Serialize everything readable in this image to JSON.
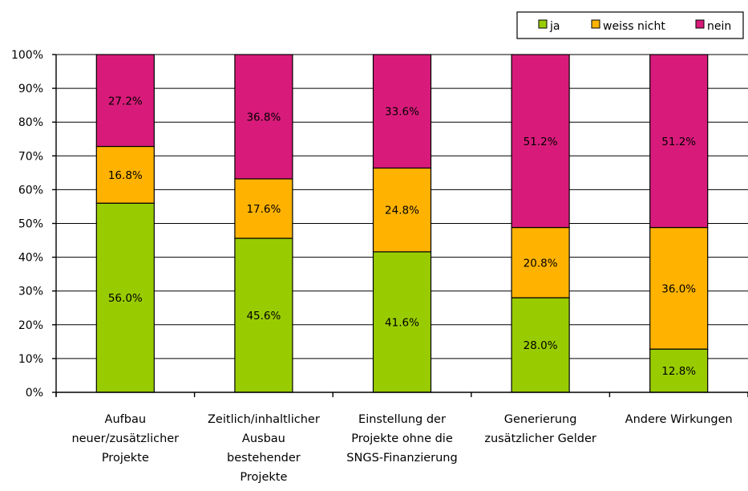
{
  "chart_data": {
    "type": "bar",
    "stacked": true,
    "categories": [
      "Aufbau neuer/zusätzlicher Projekte",
      "Zeitlich/inhaltlicher Ausbau bestehender Projekte",
      "Einstellung der Projekte ohne die SNGS-Finanzierung",
      "Generierung zusätzlicher Gelder",
      "Andere Wirkungen"
    ],
    "category_lines": [
      [
        "Aufbau",
        "neuer/zusätzlicher",
        "Projekte"
      ],
      [
        "Zeitlich/inhaltlicher",
        "Ausbau",
        "bestehender",
        "Projekte"
      ],
      [
        "Einstellung der",
        "Projekte ohne die",
        "SNGS-Finanzierung"
      ],
      [
        "Generierung",
        "zusätzlicher Gelder"
      ],
      [
        "Andere Wirkungen"
      ]
    ],
    "series": [
      {
        "name": "ja",
        "color": "#99cc00",
        "values": [
          56.0,
          45.6,
          41.6,
          28.0,
          12.8
        ],
        "labels": [
          "56.0%",
          "45.6%",
          "41.6%",
          "28.0%",
          "12.8%"
        ]
      },
      {
        "name": "weiss nicht",
        "color": "#ffb300",
        "values": [
          16.8,
          17.6,
          24.8,
          20.8,
          36.0
        ],
        "labels": [
          "16.8%",
          "17.6%",
          "24.8%",
          "20.8%",
          "36.0%"
        ]
      },
      {
        "name": "nein",
        "color": "#d81b7a",
        "values": [
          27.2,
          36.8,
          33.6,
          51.2,
          51.2
        ],
        "labels": [
          "27.2%",
          "36.8%",
          "33.6%",
          "51.2%",
          "51.2%"
        ]
      }
    ],
    "y_ticks": [
      "0%",
      "10%",
      "20%",
      "30%",
      "40%",
      "50%",
      "60%",
      "70%",
      "80%",
      "90%",
      "100%"
    ],
    "ylim": [
      0,
      100
    ],
    "grid": true,
    "legend": "top-right"
  }
}
